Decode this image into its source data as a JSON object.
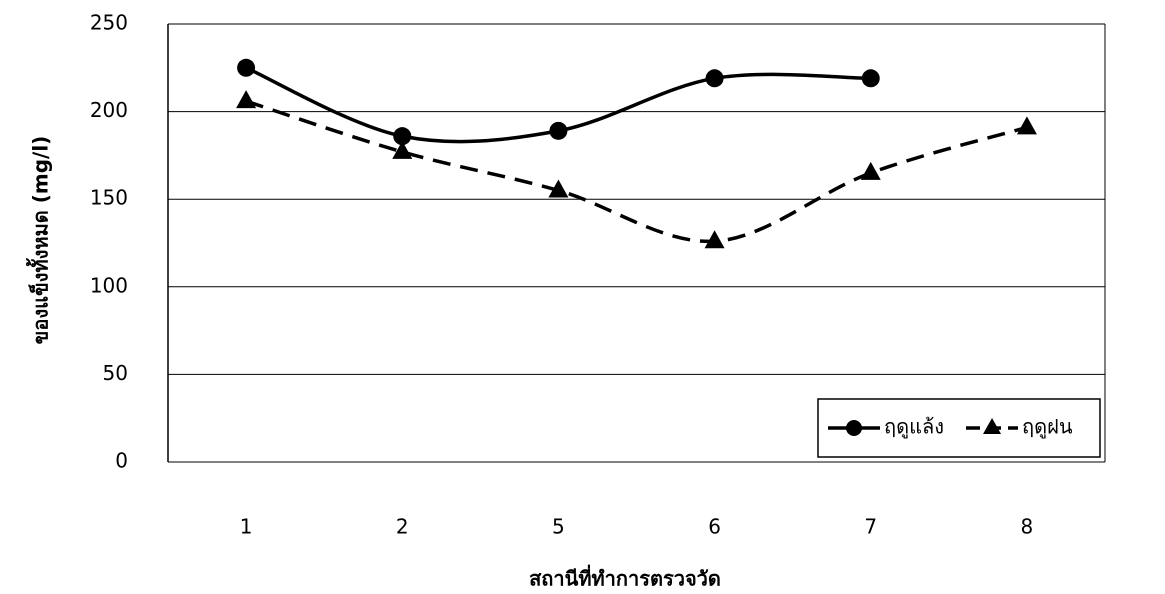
{
  "chart_data": {
    "type": "line",
    "x_label": "สถานีที่ทำการตรวจวัด",
    "y_label": "ของแข็งทั้งหมด (mg/l)",
    "categories": [
      "1",
      "2",
      "5",
      "6",
      "7",
      "8"
    ],
    "series": [
      {
        "name": "ฤดูแล้ง",
        "color": "#000000",
        "dashed": false,
        "marker": "circle",
        "values": [
          225,
          186,
          189,
          219,
          219,
          null
        ]
      },
      {
        "name": "ฤดูฝน",
        "color": "#000000",
        "dashed": true,
        "marker": "triangle",
        "values": [
          206,
          177,
          155,
          126,
          165,
          191
        ]
      }
    ],
    "ylim": [
      0,
      250
    ],
    "yticks": [
      0,
      50,
      100,
      150,
      200,
      250
    ],
    "grid": true,
    "legend": "bottom-right"
  }
}
